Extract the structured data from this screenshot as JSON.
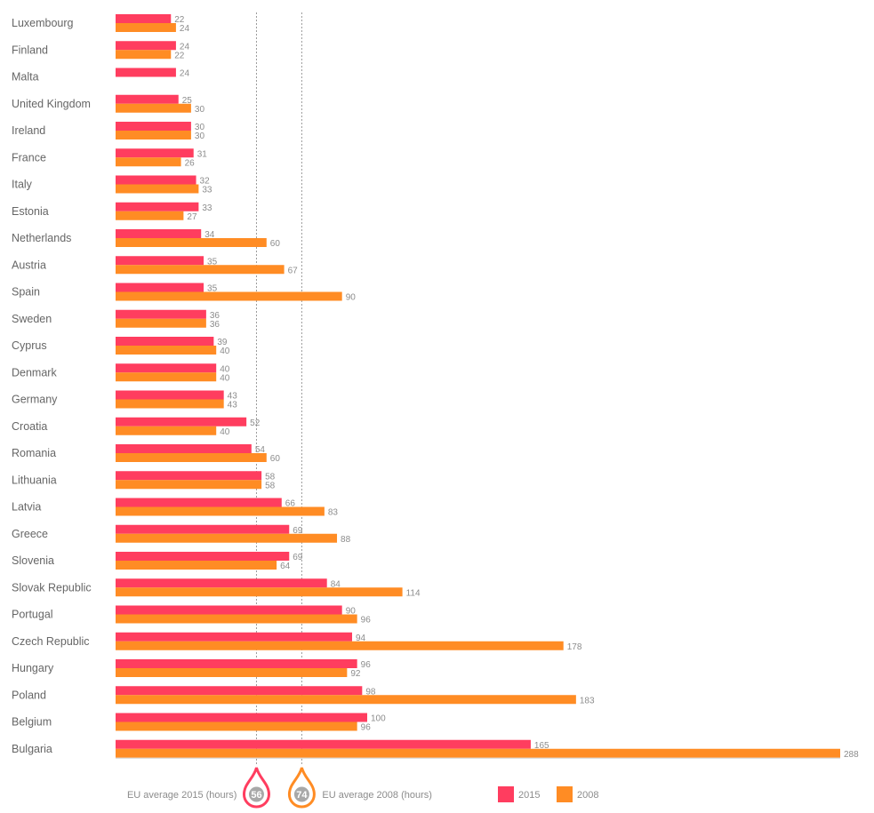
{
  "chart_data": {
    "type": "bar",
    "orientation": "horizontal",
    "categories": [
      "Luxembourg",
      "Finland",
      "Malta",
      "United Kingdom",
      "Ireland",
      "France",
      "Italy",
      "Estonia",
      "Netherlands",
      "Austria",
      "Spain",
      "Sweden",
      "Cyprus",
      "Denmark",
      "Germany",
      "Croatia",
      "Romania",
      "Lithuania",
      "Latvia",
      "Greece",
      "Slovenia",
      "Slovak Republic",
      "Portugal",
      "Czech Republic",
      "Hungary",
      "Poland",
      "Belgium",
      "Bulgaria"
    ],
    "series": [
      {
        "name": "2015",
        "color": "#ff3d5f",
        "values": [
          22,
          24,
          24,
          25,
          30,
          31,
          32,
          33,
          34,
          35,
          35,
          36,
          39,
          40,
          43,
          52,
          54,
          58,
          66,
          69,
          69,
          84,
          90,
          94,
          96,
          98,
          100,
          165
        ]
      },
      {
        "name": "2008",
        "color": "#ff8c24",
        "values": [
          24,
          22,
          null,
          30,
          30,
          26,
          33,
          27,
          60,
          67,
          90,
          36,
          40,
          40,
          43,
          40,
          60,
          58,
          83,
          88,
          64,
          114,
          96,
          178,
          92,
          183,
          96,
          288
        ]
      }
    ],
    "xlim": [
      0,
      288
    ],
    "grid": false,
    "reference_lines": [
      {
        "label": "EU average 2015 (hours)",
        "value": 56,
        "color": "#ff3d5f"
      },
      {
        "label": "EU average 2008 (hours)",
        "value": 74,
        "color": "#ff8c24"
      }
    ],
    "legend_position": "bottom"
  }
}
